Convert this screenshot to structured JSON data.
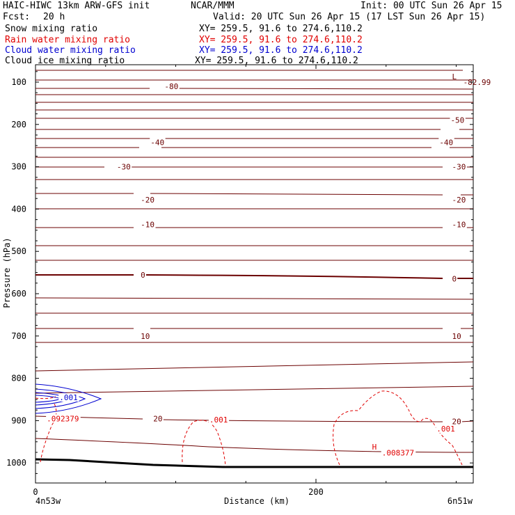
{
  "header": {
    "model": "HAIC-HIWC 13km ARW-GFS init",
    "org": "NCAR/MMM",
    "init": "Init: 00 UTC Sun 26 Apr 15",
    "fcst_label": "Fcst:",
    "fcst_value": "20 h",
    "valid": "Valid: 20 UTC Sun 26 Apr 15 (17 LST Sun 26 Apr 15)"
  },
  "fields": [
    {
      "name": "Snow mixing ratio",
      "xy": "XY= 259.5, 91.6 to 274.6,110.2",
      "color": "#000000"
    },
    {
      "name": "Rain water mixing ratio",
      "xy": "XY= 259.5, 91.6 to 274.6,110.2",
      "color": "#e00000"
    },
    {
      "name": "Cloud water mixing ratio",
      "xy": "XY= 259.5, 91.6 to 274.6,110.2",
      "color": "#0000d0"
    },
    {
      "name": "Cloud ice mixing ratio",
      "xy": "XY= 259.5, 91.6 to 274.6,110.2",
      "color": "#000000"
    }
  ],
  "chart_data": {
    "type": "contour",
    "xlabel": "Distance (km)",
    "ylabel": "Pressure (hPa)",
    "x_ticks": [
      0,
      200
    ],
    "y_ticks": [
      100,
      200,
      300,
      400,
      500,
      600,
      700,
      800,
      900,
      1000
    ],
    "endpoints": [
      "4n53w",
      "6n51w"
    ],
    "colors": {
      "temperature": "#6b0000",
      "cloud_water": "#0000d0",
      "rain_water": "#e00000",
      "surface": "#000000"
    },
    "temperature_labels": [
      {
        "text": "-80",
        "x": 92,
        "p": 110
      },
      {
        "text": "-50",
        "x": 296,
        "p": 190
      },
      {
        "text": "-40",
        "x": 82,
        "p": 242
      },
      {
        "text": "-40",
        "x": 288,
        "p": 242
      },
      {
        "text": "-30",
        "x": 58,
        "p": 300
      },
      {
        "text": "-30",
        "x": 297,
        "p": 300
      },
      {
        "text": "-20",
        "x": 75,
        "p": 378
      },
      {
        "text": "-20",
        "x": 297,
        "p": 378
      },
      {
        "text": "-10",
        "x": 75,
        "p": 436
      },
      {
        "text": "-10",
        "x": 297,
        "p": 436
      },
      {
        "text": "0",
        "x": 75,
        "p": 556
      },
      {
        "text": "0",
        "x": 297,
        "p": 565
      },
      {
        "text": "10",
        "x": 75,
        "p": 700
      },
      {
        "text": "10",
        "x": 297,
        "p": 700
      },
      {
        "text": "20",
        "x": 84,
        "p": 895
      },
      {
        "text": "20",
        "x": 297,
        "p": 902
      }
    ],
    "cloud_water_labels": [
      {
        "text": ".001",
        "x": 17,
        "p": 845
      }
    ],
    "rain_water_labels": [
      {
        "text": ".001",
        "x": 124,
        "p": 898
      },
      {
        "text": ".001",
        "x": 286,
        "p": 919
      },
      {
        "text": ".092379",
        "x": 8,
        "p": 895
      },
      {
        "text": "H",
        "x": 240,
        "p": 962
      },
      {
        "text": ".008377",
        "x": 247,
        "p": 976
      }
    ],
    "extremes": [
      {
        "text": "L",
        "x": 297,
        "p": 87
      },
      {
        "text": "-82.99",
        "x": 305,
        "p": 100
      }
    ]
  }
}
